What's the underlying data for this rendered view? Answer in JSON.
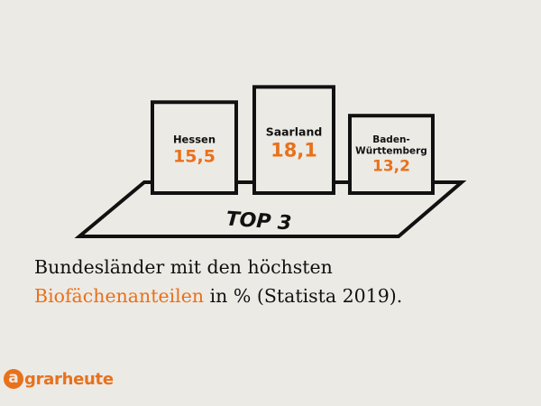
{
  "chart_data": {
    "type": "bar",
    "categories": [
      "Hessen",
      "Saarland",
      "Baden-\nWürttemberg"
    ],
    "values": [
      15.5,
      18.1,
      13.2
    ],
    "value_labels": [
      "15,5",
      "18,1",
      "13,2"
    ],
    "podium_label": "TOP 3",
    "title": ""
  },
  "caption": {
    "line1": "Bundesländer mit den höchsten",
    "highlight": "Biofächenanteilen",
    "rest": " in % (Statista 2019)."
  },
  "logo": {
    "mark": "a",
    "text": "grarheute"
  },
  "colors": {
    "accent": "#e8711c",
    "ink": "#111111",
    "background": "#eceae5"
  }
}
